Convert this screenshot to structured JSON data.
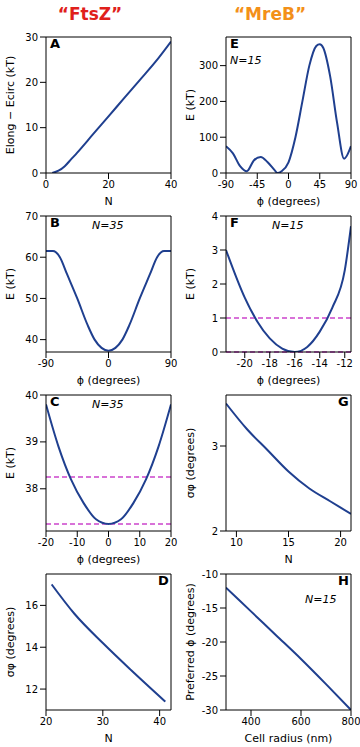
{
  "column_titles": [
    {
      "text": "“FtsZ”",
      "color": "#e0201b"
    },
    {
      "text": "“MreB”",
      "color": "#f39019"
    }
  ],
  "chart_data": [
    {
      "type": "line",
      "title": "A",
      "x_label": "N",
      "y_label": "Elong − Ecirc (kT)",
      "annotations": [],
      "color": "#1f3f8f",
      "x": [
        2,
        4,
        6,
        8,
        10,
        15,
        20,
        25,
        30,
        35,
        40
      ],
      "values": [
        0,
        0.5,
        1.5,
        3,
        4.5,
        8.5,
        12.5,
        16.5,
        20.5,
        24.5,
        29
      ],
      "xlim": [
        0,
        40
      ],
      "xticks": [
        0,
        20,
        40
      ],
      "ylim": [
        0,
        30
      ],
      "yticks": [
        0,
        10,
        20,
        30
      ]
    },
    {
      "type": "line",
      "title": "B",
      "x_label": "ϕ (degrees)",
      "y_label": "E (kT)",
      "annotations": [
        "N=35"
      ],
      "color": "#1f3f8f",
      "x": [
        -90,
        -80,
        -70,
        -60,
        -45,
        -30,
        -20,
        -10,
        0,
        10,
        20,
        30,
        45,
        60,
        70,
        80,
        90
      ],
      "values": [
        61.5,
        61.5,
        60,
        56,
        50,
        43.5,
        40,
        38,
        37.3,
        38,
        40,
        43.5,
        50,
        56,
        60,
        61.5,
        61.5
      ],
      "xlim": [
        -90,
        90
      ],
      "xticks": [
        -90,
        0,
        90
      ],
      "ylim": [
        37,
        70
      ],
      "yticks": [
        40,
        50,
        60,
        70
      ]
    },
    {
      "type": "line",
      "title": "C",
      "x_label": "ϕ (degrees)",
      "y_label": "E (kT)",
      "annotations": [
        "N=35"
      ],
      "color": "#1f3f8f",
      "x": [
        -20,
        -16,
        -12,
        -8,
        -4,
        0,
        4,
        8,
        12,
        16,
        20
      ],
      "values": [
        39.8,
        38.9,
        38.2,
        37.7,
        37.35,
        37.25,
        37.35,
        37.7,
        38.2,
        38.9,
        39.8
      ],
      "xlim": [
        -20,
        20
      ],
      "xticks": [
        -20,
        -10,
        0,
        10,
        20
      ],
      "ylim": [
        37.1,
        40
      ],
      "yticks": [
        38,
        39,
        40
      ],
      "hlines": {
        "values": [
          37.25,
          38.25
        ],
        "color": "#cc44cc",
        "line_style": "dashed"
      }
    },
    {
      "type": "line",
      "title": "D",
      "x_label": "N",
      "y_label": "σφ (degrees)",
      "annotations": [],
      "color": "#1f3f8f",
      "x": [
        21,
        25,
        30,
        35,
        41
      ],
      "values": [
        17,
        15.6,
        14.2,
        12.9,
        11.4
      ],
      "xlim": [
        20,
        42
      ],
      "xticks": [
        20,
        30,
        40
      ],
      "ylim": [
        11,
        17.5
      ],
      "yticks": [
        12,
        14,
        16
      ]
    },
    {
      "type": "line",
      "title": "E",
      "x_label": "ϕ (degrees)",
      "y_label": "E (kT)",
      "annotations": [
        "N=15"
      ],
      "color": "#1f3f8f",
      "x": [
        -90,
        -80,
        -70,
        -60,
        -50,
        -40,
        -30,
        -20,
        -16,
        -10,
        0,
        10,
        20,
        30,
        40,
        45,
        50,
        60,
        70,
        80,
        90
      ],
      "values": [
        75,
        55,
        20,
        5,
        35,
        45,
        30,
        8,
        0,
        5,
        30,
        100,
        200,
        300,
        355,
        360,
        350,
        270,
        140,
        40,
        75
      ],
      "xlim": [
        -90,
        90
      ],
      "xticks": [
        -90,
        -45,
        0,
        45,
        90
      ],
      "ylim": [
        0,
        380
      ],
      "yticks": [
        0,
        100,
        200,
        300
      ]
    },
    {
      "type": "line",
      "title": "F",
      "x_label": "ϕ (degrees)",
      "y_label": "E (kT)",
      "annotations": [
        "N=15"
      ],
      "color": "#1f3f8f",
      "x": [
        -21.5,
        -20,
        -19,
        -18,
        -17,
        -16,
        -15,
        -14,
        -13,
        -12,
        -11.5
      ],
      "values": [
        3.0,
        1.6,
        0.9,
        0.4,
        0.1,
        0,
        0.15,
        0.6,
        1.3,
        2.4,
        3.7
      ],
      "xlim": [
        -21.5,
        -11.5
      ],
      "xticks": [
        -20,
        -18,
        -16,
        -14,
        -12
      ],
      "ylim": [
        0,
        4
      ],
      "yticks": [
        0,
        1,
        2,
        3,
        4
      ],
      "hlines": {
        "values": [
          0,
          1
        ],
        "color": "#cc44cc",
        "line_style": "dashed"
      }
    },
    {
      "type": "line",
      "title": "G",
      "x_label": "N",
      "y_label": "σφ (degrees)",
      "annotations": [],
      "color": "#1f3f8f",
      "x": [
        9,
        11,
        13,
        15,
        17,
        19,
        21
      ],
      "values": [
        3.5,
        3.2,
        2.95,
        2.7,
        2.5,
        2.35,
        2.2
      ],
      "xlim": [
        9,
        21
      ],
      "xticks": [
        10,
        15,
        20
      ],
      "ylim": [
        2,
        3.6
      ],
      "yticks": [
        2,
        3
      ]
    },
    {
      "type": "line",
      "title": "H",
      "x_label": "Cell radius (nm)",
      "y_label": "Preferred ϕ (degrees)",
      "annotations": [
        "N=15"
      ],
      "color": "#1f3f8f",
      "x": [
        300,
        400,
        500,
        600,
        700,
        800
      ],
      "values": [
        -12,
        -15.5,
        -19,
        -22.5,
        -26.2,
        -30
      ],
      "xlim": [
        300,
        800
      ],
      "xticks": [
        400,
        600,
        800
      ],
      "ylim": [
        -30,
        -10
      ],
      "yticks": [
        -30,
        -25,
        -20,
        -15,
        -10
      ]
    }
  ]
}
